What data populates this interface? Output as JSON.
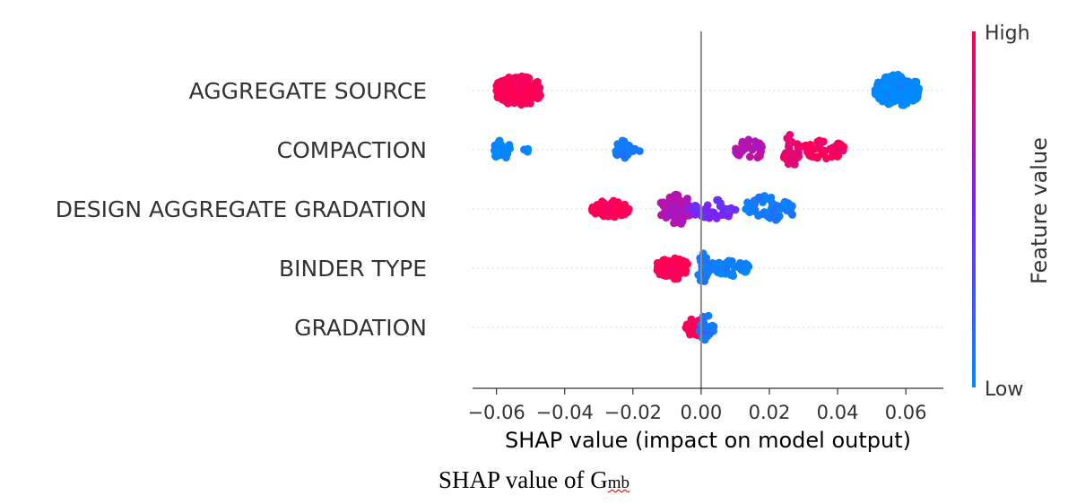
{
  "chart_data": {
    "type": "scatter",
    "subtype": "shap-beeswarm",
    "xlabel": "SHAP value (impact on model output)",
    "xlim": [
      -0.067,
      0.071
    ],
    "xticks": [
      -0.06,
      -0.04,
      -0.02,
      0.0,
      0.02,
      0.04,
      0.06
    ],
    "xtick_labels": [
      "−0.06",
      "−0.04",
      "−0.02",
      "0.00",
      "0.02",
      "0.04",
      "0.06"
    ],
    "features": [
      {
        "name": "AGGREGATE SOURCE",
        "clusters": [
          {
            "x_min": -0.06,
            "x_max": -0.047,
            "value": 1.0,
            "count": 140,
            "spread": 1.0
          },
          {
            "x_min": 0.051,
            "x_max": 0.064,
            "value": 0.0,
            "count": 140,
            "spread": 1.0
          }
        ]
      },
      {
        "name": "COMPACTION",
        "clusters": [
          {
            "x_min": -0.061,
            "x_max": -0.056,
            "value": 0.03,
            "count": 26,
            "spread": 0.6
          },
          {
            "x_min": -0.052,
            "x_max": -0.05,
            "value": 0.05,
            "count": 3,
            "spread": 0.2
          },
          {
            "x_min": -0.025,
            "x_max": -0.021,
            "value": 0.08,
            "count": 30,
            "spread": 0.6
          },
          {
            "x_min": -0.02,
            "x_max": -0.018,
            "value": 0.1,
            "count": 4,
            "spread": 0.2
          },
          {
            "x_min": 0.01,
            "x_max": 0.018,
            "value": 0.72,
            "count": 30,
            "spread": 0.65
          },
          {
            "x_min": 0.024,
            "x_max": 0.029,
            "value": 0.9,
            "count": 34,
            "spread": 1.0
          },
          {
            "x_min": 0.03,
            "x_max": 0.042,
            "value": 0.97,
            "count": 44,
            "spread": 0.6
          }
        ]
      },
      {
        "name": "DESIGN AGGREGATE GRADATION",
        "clusters": [
          {
            "x_min": -0.032,
            "x_max": -0.021,
            "value": 1.0,
            "count": 44,
            "spread": 0.55
          },
          {
            "x_min": -0.012,
            "x_max": -0.003,
            "value": 0.7,
            "count": 70,
            "spread": 1.0
          },
          {
            "x_min": -0.003,
            "x_max": 0.011,
            "value": 0.45,
            "count": 44,
            "spread": 0.6
          },
          {
            "x_min": 0.013,
            "x_max": 0.027,
            "value": 0.08,
            "count": 48,
            "spread": 0.85
          }
        ]
      },
      {
        "name": "BINDER TYPE",
        "clusters": [
          {
            "x_min": -0.013,
            "x_max": -0.004,
            "value": 1.0,
            "count": 60,
            "spread": 0.75
          },
          {
            "x_min": -0.001,
            "x_max": 0.002,
            "value": 0.1,
            "count": 26,
            "spread": 1.0
          },
          {
            "x_min": 0.002,
            "x_max": 0.014,
            "value": 0.05,
            "count": 48,
            "spread": 0.5
          }
        ]
      },
      {
        "name": "GRADATION",
        "clusters": [
          {
            "x_min": -0.005,
            "x_max": 0.001,
            "value": 1.0,
            "count": 40,
            "spread": 0.55
          },
          {
            "x_min": -0.001,
            "x_max": 0.004,
            "value": 0.1,
            "count": 22,
            "spread": 0.8
          }
        ]
      }
    ],
    "colorbar": {
      "label": "Feature value",
      "high_label": "High",
      "low_label": "Low",
      "high_color": "#ff0052",
      "mid_color": "#7b23f5",
      "low_color": "#008bfb"
    }
  },
  "caption": {
    "text": "SHAP value of G",
    "subscript": "mb"
  }
}
